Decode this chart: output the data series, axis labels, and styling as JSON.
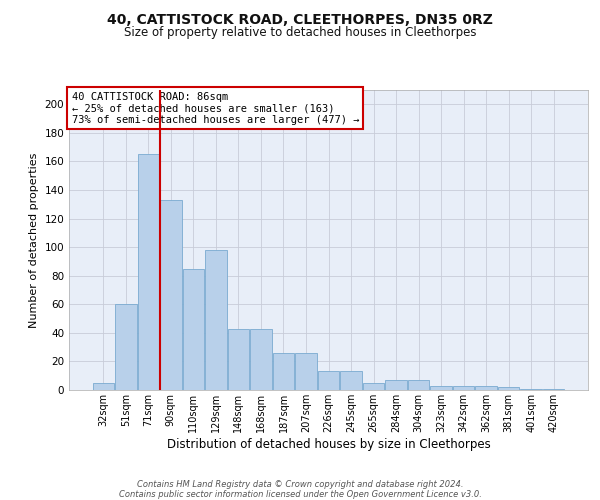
{
  "title1": "40, CATTISTOCK ROAD, CLEETHORPES, DN35 0RZ",
  "title2": "Size of property relative to detached houses in Cleethorpes",
  "xlabel": "Distribution of detached houses by size in Cleethorpes",
  "ylabel": "Number of detached properties",
  "categories": [
    "32sqm",
    "51sqm",
    "71sqm",
    "90sqm",
    "110sqm",
    "129sqm",
    "148sqm",
    "168sqm",
    "187sqm",
    "207sqm",
    "226sqm",
    "245sqm",
    "265sqm",
    "284sqm",
    "304sqm",
    "323sqm",
    "342sqm",
    "362sqm",
    "381sqm",
    "401sqm",
    "420sqm"
  ],
  "values": [
    5,
    60,
    165,
    133,
    85,
    98,
    43,
    43,
    26,
    26,
    13,
    13,
    5,
    7,
    7,
    3,
    3,
    3,
    2,
    1,
    1
  ],
  "bar_color": "#b8d0ea",
  "bar_edge_color": "#7aaad0",
  "vline_color": "#cc0000",
  "vline_pos": 2.5,
  "ylim": [
    0,
    210
  ],
  "yticks": [
    0,
    20,
    40,
    60,
    80,
    100,
    120,
    140,
    160,
    180,
    200
  ],
  "annotation_text": "40 CATTISTOCK ROAD: 86sqm\n← 25% of detached houses are smaller (163)\n73% of semi-detached houses are larger (477) →",
  "annotation_box_facecolor": "#ffffff",
  "annotation_box_edge": "#cc0000",
  "footer_text": "Contains HM Land Registry data © Crown copyright and database right 2024.\nContains public sector information licensed under the Open Government Licence v3.0.",
  "background_color": "#e8eef8",
  "grid_color": "#c8ccd8",
  "title1_fontsize": 10,
  "title2_fontsize": 8.5,
  "ylabel_fontsize": 8,
  "xlabel_fontsize": 8.5,
  "tick_fontsize": 7,
  "ytick_fontsize": 7.5,
  "ann_fontsize": 7.5,
  "footer_fontsize": 6
}
